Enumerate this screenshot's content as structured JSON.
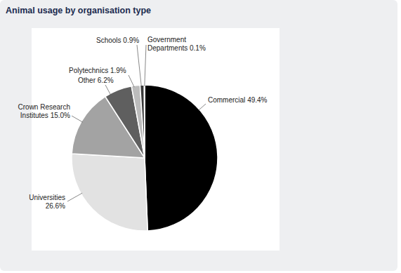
{
  "chart_data": {
    "type": "pie",
    "title": "Animal usage by organisation type",
    "categories": [
      "Commercial",
      "Universities",
      "Crown Research Institutes",
      "Other",
      "Polytechnics",
      "Schools",
      "Government Departments"
    ],
    "values": [
      49.4,
      26.6,
      15.0,
      6.2,
      1.9,
      0.9,
      0.1
    ],
    "value_labels": [
      "49.4%",
      "26.6%",
      "15.0%",
      "6.2%",
      "1.9%",
      "0.9%",
      "0.1%"
    ],
    "colors": [
      "#000000",
      "#e2e2e2",
      "#a3a3a3",
      "#5f5f5f",
      "#bcbcbc",
      "#3a3a3a",
      "#8c8c8c"
    ],
    "data_labels": true
  }
}
